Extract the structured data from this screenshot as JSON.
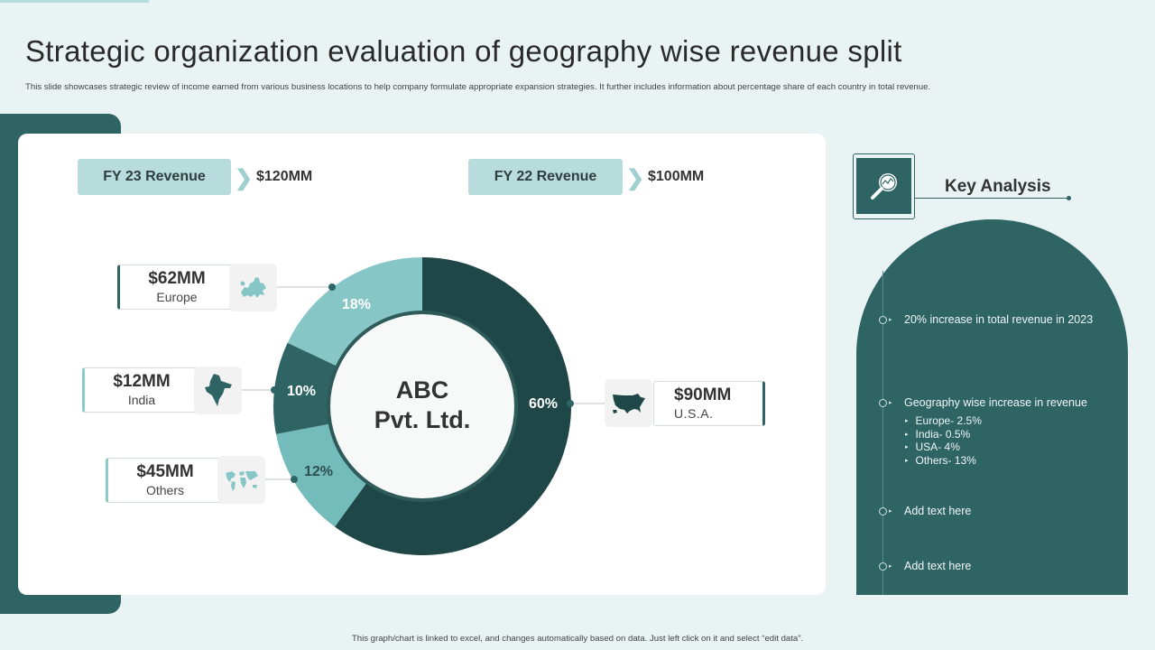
{
  "page": {
    "title": "Strategic organization evaluation of geography wise revenue split",
    "subtitle": "This slide showcases strategic review of income earned from various business locations to help company formulate appropriate expansion strategies. It further includes information about percentage share of each country in total revenue.",
    "footer": "This graph/chart is linked to excel, and changes automatically based on data. Just left click on it and select “edit data”."
  },
  "revenue": {
    "fy23_label": "FY 23 Revenue",
    "fy23_value": "$120MM",
    "fy22_label": "FY 22 Revenue",
    "fy22_value": "$100MM"
  },
  "regions": {
    "europe": {
      "amount": "$62MM",
      "name": "Europe",
      "icon": "europe-map-icon"
    },
    "india": {
      "amount": "$12MM",
      "name": "India",
      "icon": "india-map-icon"
    },
    "others": {
      "amount": "$45MM",
      "name": "Others",
      "icon": "world-map-icon"
    },
    "usa": {
      "amount": "$90MM",
      "name": "U.S.A.",
      "icon": "usa-map-icon"
    }
  },
  "chart_data": {
    "type": "pie",
    "categories": [
      "U.S.A.",
      "Others",
      "India",
      "Europe"
    ],
    "values": [
      60,
      12,
      10,
      18
    ],
    "labels": [
      "60%",
      "12%",
      "10%",
      "18%"
    ],
    "center_label_line1": "ABC",
    "center_label_line2": "Pvt. Ltd.",
    "colors": [
      "#1f4747",
      "#74bcbc",
      "#2f6464",
      "#86c6c6"
    ]
  },
  "key_analysis": {
    "title": "Key Analysis",
    "icon": "magnifier-chart-icon",
    "bullets": [
      {
        "text": "20% increase in total revenue  in 2023"
      },
      {
        "text": "Geography  wise increase in revenue"
      },
      {
        "text": "Add text here"
      },
      {
        "text": "Add text here"
      }
    ],
    "sub_items": [
      "Europe- 2.5%",
      "India- 0.5%",
      "USA- 4%",
      "Others- 13%"
    ]
  },
  "colors": {
    "primary": "#2f6464",
    "dark": "#1f4747",
    "light": "#b8dcdb",
    "background": "#e9f3f4"
  }
}
